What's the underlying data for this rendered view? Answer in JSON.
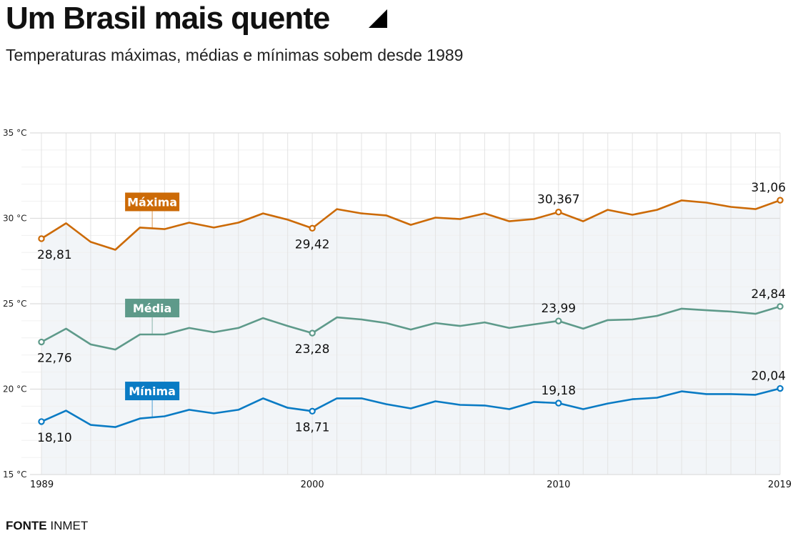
{
  "header": {
    "title": "Um Brasil mais quente",
    "title_icon": "triangle-corner-icon",
    "subtitle": "Temperaturas máximas, médias e mínimas sobem desde 1989"
  },
  "footer": {
    "source_label": "FONTE",
    "source_value": "INMET"
  },
  "chart_data": {
    "type": "line",
    "title": "Um Brasil mais quente",
    "subtitle": "Temperaturas máximas, médias e mínimas sobem desde 1989",
    "xlabel": "",
    "ylabel": "",
    "x": [
      1989,
      1990,
      1991,
      1992,
      1993,
      1994,
      1995,
      1996,
      1997,
      1998,
      1999,
      2000,
      2001,
      2002,
      2003,
      2004,
      2005,
      2006,
      2007,
      2008,
      2009,
      2010,
      2011,
      2012,
      2013,
      2014,
      2015,
      2016,
      2017,
      2018,
      2019
    ],
    "xlim": [
      1989,
      2019
    ],
    "ylim": [
      15,
      35
    ],
    "y_ticks": [
      {
        "value": 35,
        "label": "35 °C"
      },
      {
        "value": 30,
        "label": "30 °C"
      },
      {
        "value": 25,
        "label": "25 °C"
      },
      {
        "value": 20,
        "label": "20 °C"
      },
      {
        "value": 15,
        "label": "15 °C"
      }
    ],
    "x_ticks": [
      {
        "value": 1989,
        "label": "1989"
      },
      {
        "value": 2000,
        "label": "2000"
      },
      {
        "value": 2010,
        "label": "2010"
      },
      {
        "value": 2019,
        "label": "2019"
      }
    ],
    "grid": true,
    "area_fill_under": "Máxima",
    "colors": {
      "fill": "#f2f5f8",
      "grid": "#e3e3e3",
      "axis": "#dddddd"
    },
    "series": [
      {
        "name": "Máxima",
        "color": "#cc6a06",
        "label_year": 1993.5,
        "values": [
          28.81,
          29.71,
          28.62,
          28.16,
          29.46,
          29.37,
          29.75,
          29.46,
          29.75,
          30.29,
          29.92,
          29.42,
          30.54,
          30.29,
          30.17,
          29.62,
          30.04,
          29.96,
          30.29,
          29.83,
          29.96,
          30.367,
          29.83,
          30.5,
          30.21,
          30.5,
          31.05,
          30.92,
          30.67,
          30.54,
          31.06
        ],
        "annotations": [
          {
            "year": 1989,
            "label": "28,81",
            "position": "below"
          },
          {
            "year": 2000,
            "label": "29,42",
            "position": "below"
          },
          {
            "year": 2010,
            "label": "30,367",
            "position": "above"
          },
          {
            "year": 2019,
            "label": "31,06",
            "position": "above"
          }
        ]
      },
      {
        "name": "Média",
        "color": "#5e9a8a",
        "label_year": 1993.5,
        "values": [
          22.76,
          23.54,
          22.62,
          22.32,
          23.2,
          23.2,
          23.58,
          23.33,
          23.58,
          24.16,
          23.7,
          23.28,
          24.2,
          24.08,
          23.87,
          23.49,
          23.87,
          23.7,
          23.91,
          23.58,
          23.79,
          23.99,
          23.54,
          24.04,
          24.08,
          24.29,
          24.71,
          24.62,
          24.54,
          24.41,
          24.84
        ],
        "annotations": [
          {
            "year": 1989,
            "label": "22,76",
            "position": "below"
          },
          {
            "year": 2000,
            "label": "23,28",
            "position": "below"
          },
          {
            "year": 2010,
            "label": "23,99",
            "position": "above"
          },
          {
            "year": 2019,
            "label": "24,84",
            "position": "above"
          }
        ]
      },
      {
        "name": "Mínima",
        "color": "#0a7bc4",
        "label_year": 1993.5,
        "values": [
          18.1,
          18.74,
          17.91,
          17.78,
          18.28,
          18.41,
          18.79,
          18.58,
          18.79,
          19.46,
          18.91,
          18.71,
          19.46,
          19.46,
          19.12,
          18.87,
          19.29,
          19.08,
          19.04,
          18.83,
          19.25,
          19.18,
          18.83,
          19.16,
          19.41,
          19.5,
          19.87,
          19.71,
          19.71,
          19.67,
          20.04
        ],
        "annotations": [
          {
            "year": 1989,
            "label": "18,10",
            "position": "below"
          },
          {
            "year": 2000,
            "label": "18,71",
            "position": "below"
          },
          {
            "year": 2010,
            "label": "19,18",
            "position": "above"
          },
          {
            "year": 2019,
            "label": "20,04",
            "position": "above"
          }
        ]
      }
    ]
  }
}
